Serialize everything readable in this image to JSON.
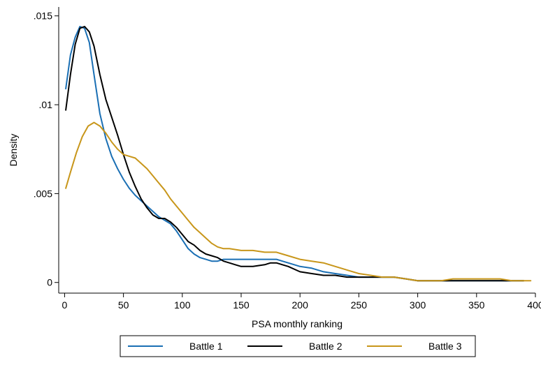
{
  "chart_data": {
    "type": "line",
    "title": "",
    "xlabel": "PSA monthly ranking",
    "ylabel": "Density",
    "xlim": [
      -5,
      400
    ],
    "ylim": [
      -0.0006,
      0.0155
    ],
    "xticks": [
      0,
      50,
      100,
      150,
      200,
      250,
      300,
      350,
      400
    ],
    "xtick_labels": [
      "0",
      "50",
      "100",
      "150",
      "200",
      "250",
      "300",
      "350",
      "400"
    ],
    "yticks": [
      0,
      0.005,
      0.01,
      0.015
    ],
    "ytick_labels": [
      "0",
      ".005",
      ".01",
      ".015"
    ],
    "grid": false,
    "legend_position": "bottom",
    "series": [
      {
        "name": "Battle 1",
        "color": "#1a6fb4",
        "points": [
          [
            1,
            0.0109
          ],
          [
            5,
            0.0128
          ],
          [
            9,
            0.0138
          ],
          [
            13,
            0.0144
          ],
          [
            17,
            0.0143
          ],
          [
            21,
            0.0135
          ],
          [
            25,
            0.0117
          ],
          [
            30,
            0.0095
          ],
          [
            35,
            0.0081
          ],
          [
            40,
            0.0071
          ],
          [
            45,
            0.0064
          ],
          [
            50,
            0.0058
          ],
          [
            55,
            0.0053
          ],
          [
            60,
            0.0049
          ],
          [
            65,
            0.0046
          ],
          [
            70,
            0.0043
          ],
          [
            75,
            0.004
          ],
          [
            80,
            0.0037
          ],
          [
            85,
            0.0035
          ],
          [
            90,
            0.0033
          ],
          [
            95,
            0.0029
          ],
          [
            100,
            0.0024
          ],
          [
            105,
            0.0019
          ],
          [
            110,
            0.0016
          ],
          [
            115,
            0.0014
          ],
          [
            120,
            0.0013
          ],
          [
            125,
            0.0012
          ],
          [
            130,
            0.0012
          ],
          [
            135,
            0.0013
          ],
          [
            140,
            0.0013
          ],
          [
            150,
            0.0013
          ],
          [
            160,
            0.0013
          ],
          [
            170,
            0.0013
          ],
          [
            180,
            0.0013
          ],
          [
            185,
            0.0012
          ],
          [
            190,
            0.0011
          ],
          [
            200,
            0.0009
          ],
          [
            210,
            0.0008
          ],
          [
            220,
            0.0006
          ],
          [
            230,
            0.0005
          ],
          [
            240,
            0.0004
          ],
          [
            250,
            0.0003
          ],
          [
            260,
            0.0003
          ],
          [
            270,
            0.0003
          ],
          [
            280,
            0.0003
          ],
          [
            290,
            0.0002
          ],
          [
            300,
            0.0001
          ],
          [
            310,
            0.0001
          ],
          [
            320,
            0.0001
          ],
          [
            330,
            0.0001
          ],
          [
            340,
            0.0001
          ],
          [
            350,
            0.0001
          ],
          [
            360,
            0.0001
          ],
          [
            370,
            0.0001
          ],
          [
            380,
            0.0001
          ],
          [
            390,
            0.0001
          ]
        ]
      },
      {
        "name": "Battle 2",
        "color": "#000000",
        "points": [
          [
            1,
            0.0097
          ],
          [
            5,
            0.0117
          ],
          [
            9,
            0.0134
          ],
          [
            13,
            0.0143
          ],
          [
            17,
            0.0144
          ],
          [
            21,
            0.0141
          ],
          [
            25,
            0.0133
          ],
          [
            30,
            0.0117
          ],
          [
            35,
            0.0103
          ],
          [
            40,
            0.0093
          ],
          [
            45,
            0.0083
          ],
          [
            50,
            0.0072
          ],
          [
            55,
            0.0062
          ],
          [
            60,
            0.0054
          ],
          [
            65,
            0.0047
          ],
          [
            70,
            0.0042
          ],
          [
            75,
            0.0038
          ],
          [
            80,
            0.0036
          ],
          [
            85,
            0.0036
          ],
          [
            90,
            0.0034
          ],
          [
            95,
            0.0031
          ],
          [
            100,
            0.0027
          ],
          [
            105,
            0.0023
          ],
          [
            110,
            0.0021
          ],
          [
            115,
            0.0018
          ],
          [
            120,
            0.0016
          ],
          [
            125,
            0.0015
          ],
          [
            130,
            0.0014
          ],
          [
            135,
            0.0012
          ],
          [
            140,
            0.0011
          ],
          [
            145,
            0.001
          ],
          [
            150,
            0.0009
          ],
          [
            155,
            0.0009
          ],
          [
            160,
            0.0009
          ],
          [
            170,
            0.001
          ],
          [
            175,
            0.0011
          ],
          [
            180,
            0.0011
          ],
          [
            185,
            0.001
          ],
          [
            190,
            0.0009
          ],
          [
            200,
            0.0006
          ],
          [
            210,
            0.0005
          ],
          [
            220,
            0.0004
          ],
          [
            230,
            0.0004
          ],
          [
            240,
            0.0003
          ],
          [
            250,
            0.0003
          ],
          [
            260,
            0.0003
          ],
          [
            270,
            0.0003
          ],
          [
            275,
            0.0003
          ],
          [
            280,
            0.0003
          ],
          [
            290,
            0.0002
          ],
          [
            300,
            0.0001
          ],
          [
            310,
            0.0001
          ],
          [
            320,
            0.0001
          ],
          [
            330,
            0.0001
          ],
          [
            340,
            0.0001
          ],
          [
            350,
            0.0001
          ],
          [
            360,
            0.0001
          ],
          [
            370,
            0.0001
          ],
          [
            380,
            0.0001
          ],
          [
            390,
            0.0001
          ]
        ]
      },
      {
        "name": "Battle 3",
        "color": "#c8961a",
        "points": [
          [
            1,
            0.0053
          ],
          [
            5,
            0.0062
          ],
          [
            10,
            0.0073
          ],
          [
            15,
            0.0082
          ],
          [
            20,
            0.0088
          ],
          [
            25,
            0.009
          ],
          [
            30,
            0.0088
          ],
          [
            35,
            0.0084
          ],
          [
            40,
            0.0079
          ],
          [
            45,
            0.0075
          ],
          [
            50,
            0.0072
          ],
          [
            55,
            0.0071
          ],
          [
            60,
            0.007
          ],
          [
            65,
            0.0067
          ],
          [
            70,
            0.0064
          ],
          [
            75,
            0.006
          ],
          [
            80,
            0.0056
          ],
          [
            85,
            0.0052
          ],
          [
            90,
            0.0047
          ],
          [
            95,
            0.0043
          ],
          [
            100,
            0.0039
          ],
          [
            105,
            0.0035
          ],
          [
            110,
            0.0031
          ],
          [
            115,
            0.0028
          ],
          [
            120,
            0.0025
          ],
          [
            125,
            0.0022
          ],
          [
            130,
            0.002
          ],
          [
            135,
            0.0019
          ],
          [
            140,
            0.0019
          ],
          [
            150,
            0.0018
          ],
          [
            160,
            0.0018
          ],
          [
            170,
            0.0017
          ],
          [
            180,
            0.0017
          ],
          [
            185,
            0.0016
          ],
          [
            190,
            0.0015
          ],
          [
            200,
            0.0013
          ],
          [
            210,
            0.0012
          ],
          [
            220,
            0.0011
          ],
          [
            230,
            0.0009
          ],
          [
            240,
            0.0007
          ],
          [
            250,
            0.0005
          ],
          [
            260,
            0.0004
          ],
          [
            270,
            0.0003
          ],
          [
            280,
            0.0003
          ],
          [
            290,
            0.0002
          ],
          [
            300,
            0.0001
          ],
          [
            310,
            0.0001
          ],
          [
            320,
            0.0001
          ],
          [
            330,
            0.0002
          ],
          [
            340,
            0.0002
          ],
          [
            350,
            0.0002
          ],
          [
            360,
            0.0002
          ],
          [
            370,
            0.0002
          ],
          [
            380,
            0.0001
          ],
          [
            390,
            0.0001
          ],
          [
            396,
            0.0001
          ]
        ]
      }
    ]
  }
}
